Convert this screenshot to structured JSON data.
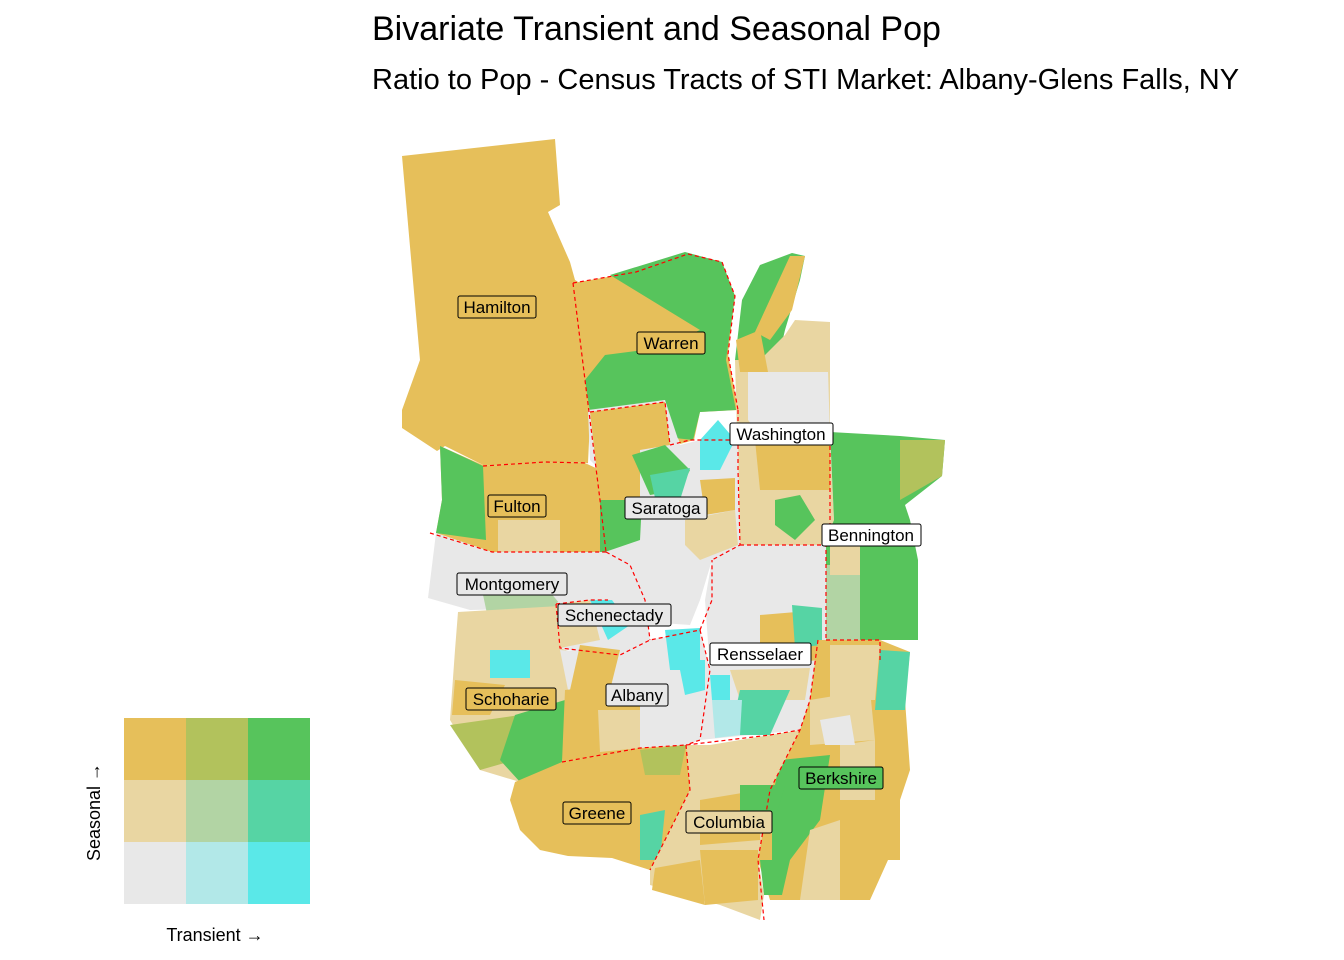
{
  "title": "Bivariate Transient and Seasonal Pop",
  "subtitle": "Ratio to Pop - Census Tracts of STI Market: Albany-Glens Falls, NY",
  "counties": [
    {
      "id": "hamilton",
      "label": "Hamilton"
    },
    {
      "id": "warren",
      "label": "Warren"
    },
    {
      "id": "washington",
      "label": "Washington"
    },
    {
      "id": "fulton",
      "label": "Fulton"
    },
    {
      "id": "saratoga",
      "label": "Saratoga"
    },
    {
      "id": "bennington",
      "label": "Bennington"
    },
    {
      "id": "montgomery",
      "label": "Montgomery"
    },
    {
      "id": "schenectady",
      "label": "Schenectady"
    },
    {
      "id": "rensselaer",
      "label": "Rensselaer"
    },
    {
      "id": "schoharie",
      "label": "Schoharie"
    },
    {
      "id": "albany",
      "label": "Albany"
    },
    {
      "id": "berkshire",
      "label": "Berkshire"
    },
    {
      "id": "greene",
      "label": "Greene"
    },
    {
      "id": "columbia",
      "label": "Columbia"
    }
  ],
  "legend": {
    "x_label": "Transient →",
    "y_label": "Seasonal →",
    "grid_colors_top_to_bottom": [
      [
        "#e6bf5a",
        "#b2c25c",
        "#57c45c"
      ],
      [
        "#e9d6a2",
        "#b2d4a4",
        "#56d4a4"
      ],
      [
        "#e8e8e8",
        "#b2e8e8",
        "#5ae8e8"
      ]
    ]
  },
  "colors": {
    "county_border": "#ff0000",
    "label_border": "#000000"
  }
}
